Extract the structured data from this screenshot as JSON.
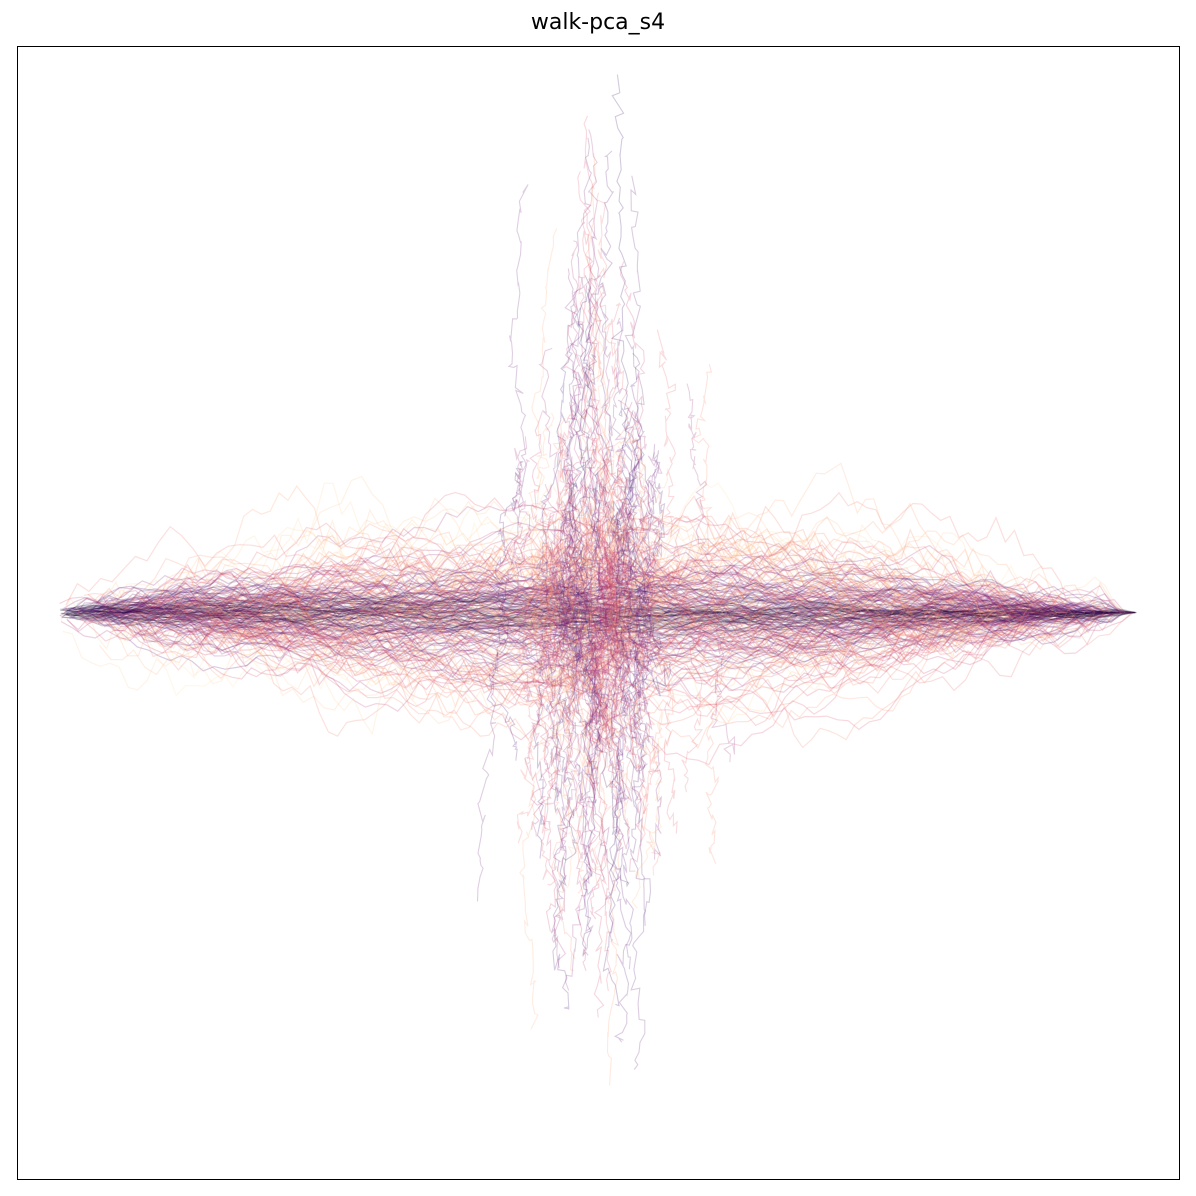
{
  "chart_data": {
    "type": "line",
    "title": "walk-pca_s4",
    "xlabel": "",
    "ylabel": "",
    "xticks": [],
    "yticks": [],
    "grid": false,
    "legend": "none",
    "xlim": [
      -1.0,
      1.0
    ],
    "ylim": [
      -1.0,
      1.0
    ],
    "colormap": "magma",
    "colormap_stops": [
      "#000004",
      "#3b0f70",
      "#8c2981",
      "#de4968",
      "#fe9f6d",
      "#fcfdbf"
    ],
    "line_alpha": 0.22,
    "series_groups": [
      {
        "role": "horizontal-spread",
        "count": 220,
        "x_range": [
          -1.0,
          1.0
        ],
        "y_center": 0.0,
        "max_y_spread": 0.2
      },
      {
        "role": "vertical-spread",
        "count": 110,
        "y_range": [
          -0.92,
          0.97
        ],
        "x_center": 0.0,
        "max_x_spread": 0.2
      }
    ]
  }
}
